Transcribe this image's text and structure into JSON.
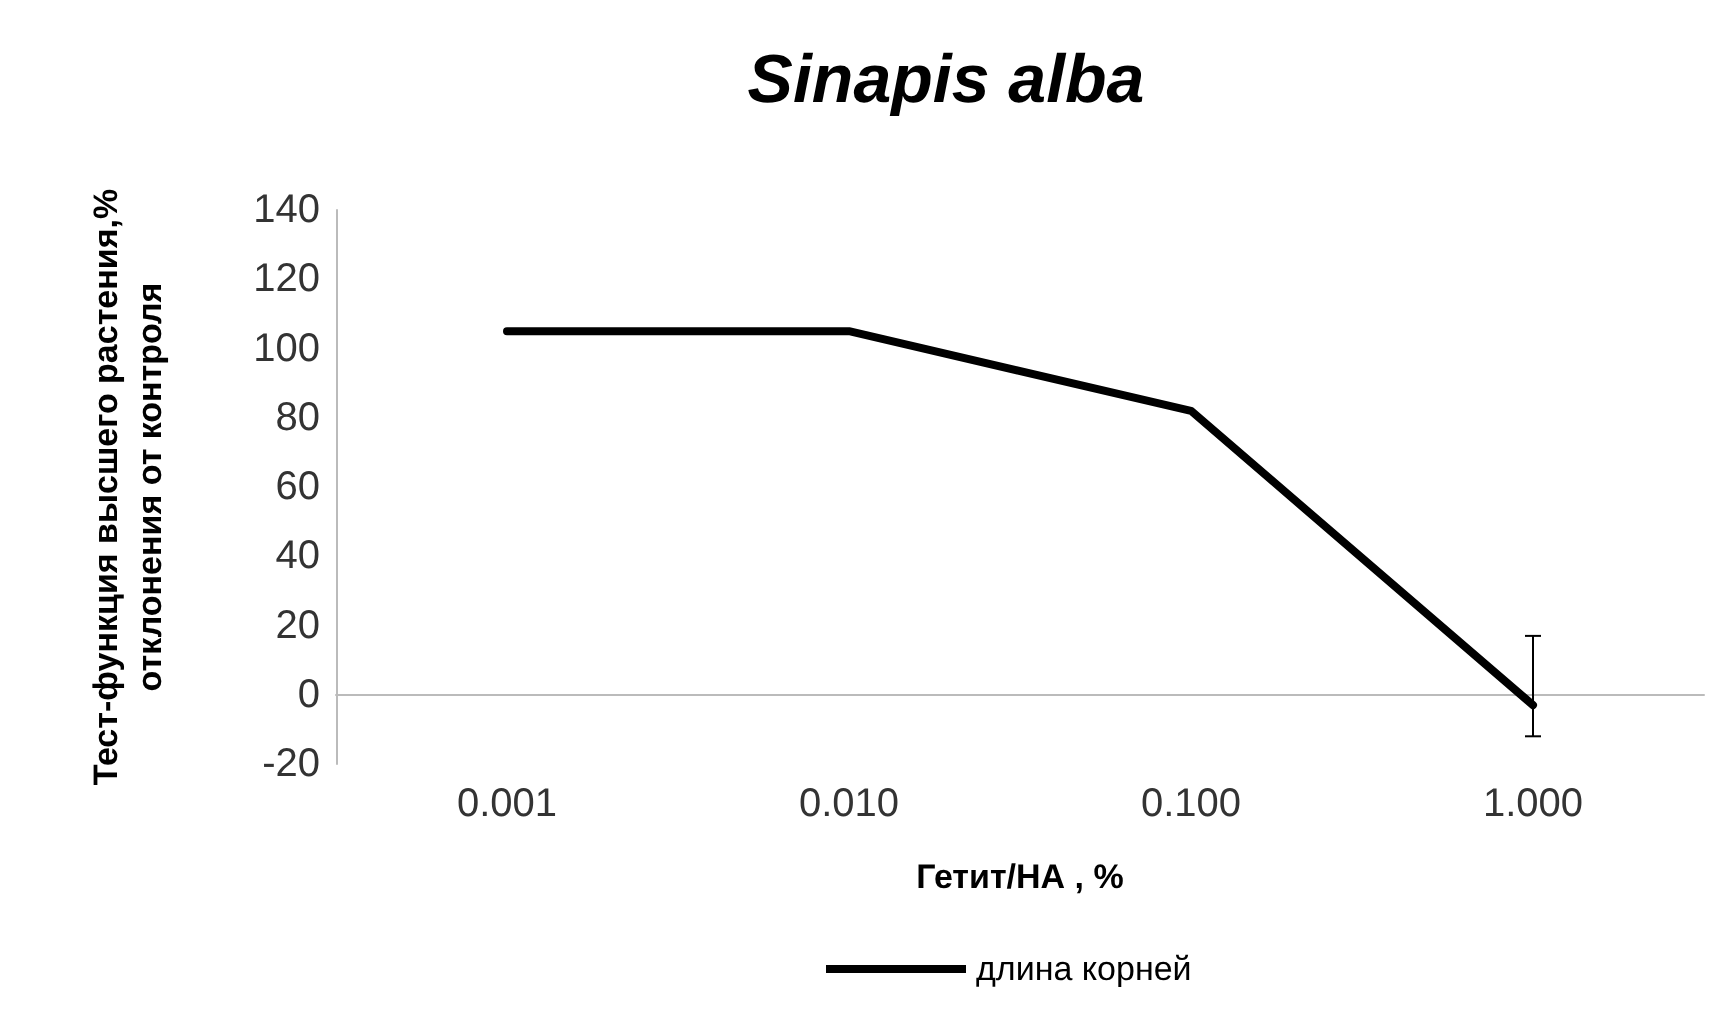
{
  "chart_data": {
    "type": "line",
    "title": "Sinapis alba",
    "xlabel": "Гетит/НА , %",
    "ylabel": "Тест-функция высшего растения,%\nотклонения от контроля",
    "categories": [
      "0.001",
      "0.010",
      "0.100",
      "1.000"
    ],
    "series": [
      {
        "name": "длина корней",
        "color": "#000000",
        "values": [
          105,
          105,
          82,
          -3
        ],
        "errors": [
          null,
          null,
          null,
          [
            -12,
            17
          ]
        ]
      }
    ],
    "ylim": [
      -20,
      140
    ],
    "yticks": [
      -20,
      0,
      20,
      40,
      60,
      80,
      100,
      120,
      140
    ],
    "grid": false,
    "legend": "bottom",
    "marker": "none",
    "line_style": "solid"
  }
}
